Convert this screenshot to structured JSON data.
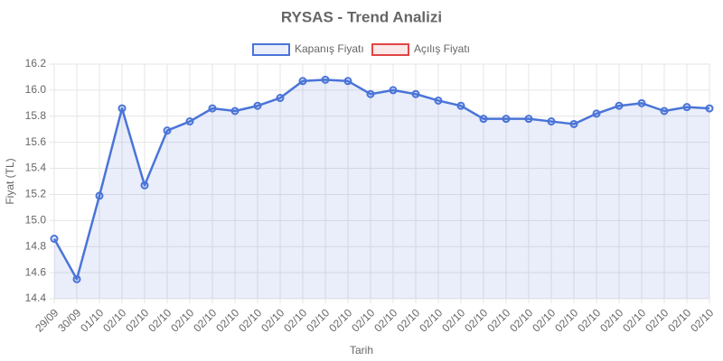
{
  "chart_data": {
    "type": "line",
    "title": "RYSAS - Trend Analizi",
    "x_label": "Tarih",
    "y_label": "Fiyat (TL)",
    "categories": [
      "29/09",
      "30/09",
      "01/10",
      "02/10",
      "02/10",
      "02/10",
      "02/10",
      "02/10",
      "02/10",
      "02/10",
      "02/10",
      "02/10",
      "02/10",
      "02/10",
      "02/10",
      "02/10",
      "02/10",
      "02/10",
      "02/10",
      "02/10",
      "02/10",
      "02/10",
      "02/10",
      "02/10",
      "02/10",
      "02/10",
      "02/10",
      "02/10",
      "02/10",
      "02/10"
    ],
    "series": [
      {
        "name": "Kapanış Fiyatı",
        "color": "#4a74d8",
        "fill": "rgba(74,116,216,0.12)",
        "values": [
          14.86,
          14.55,
          15.19,
          15.86,
          15.27,
          15.69,
          15.76,
          15.86,
          15.84,
          15.88,
          15.94,
          16.07,
          16.08,
          16.07,
          15.97,
          16.0,
          15.97,
          15.92,
          15.88,
          15.78,
          15.78,
          15.78,
          15.76,
          15.74,
          15.82,
          15.88,
          15.9,
          15.84,
          15.87,
          15.86
        ]
      },
      {
        "name": "Açılış Fiyatı",
        "color": "#e04545",
        "fill": "rgba(224,69,69,0.12)",
        "values": [
          null,
          null,
          null,
          null,
          null,
          null,
          null,
          null,
          null,
          null,
          null,
          null,
          null,
          null,
          null,
          null,
          null,
          null,
          null,
          null,
          null,
          null,
          null,
          null,
          null,
          null,
          null,
          null,
          null,
          null
        ]
      }
    ],
    "ylim": [
      14.4,
      16.2
    ],
    "yticks": [
      14.4,
      14.6,
      14.8,
      {
        "value": 15,
        "label": "15.0"
      },
      15.2,
      15.4,
      15.6,
      15.8,
      {
        "value": 16,
        "label": "16.0"
      },
      16.2
    ],
    "grid": true,
    "legend": "top"
  }
}
